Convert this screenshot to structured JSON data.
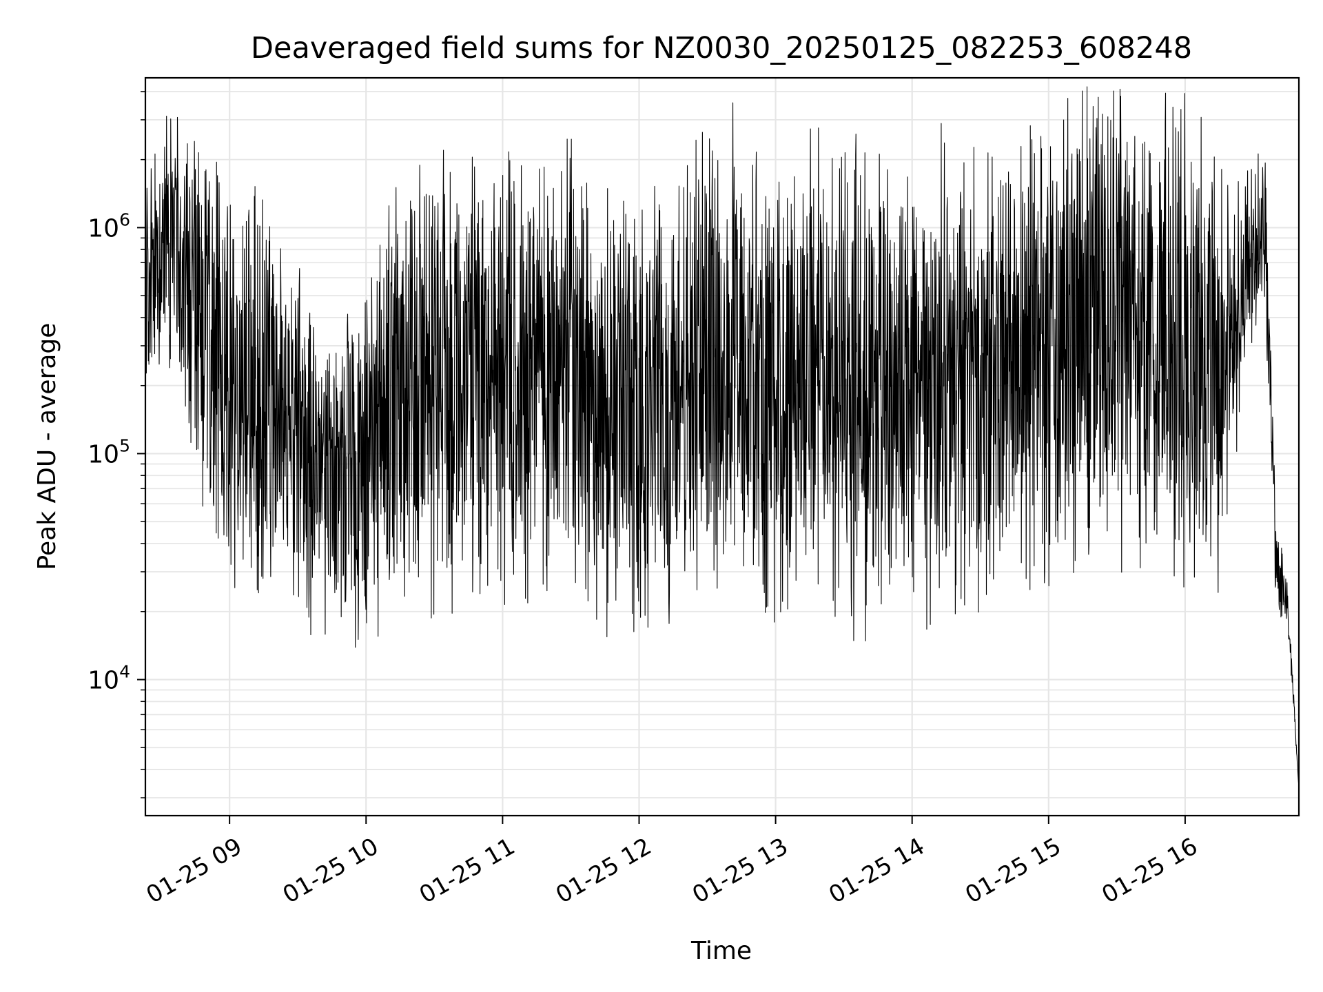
{
  "chart_data": {
    "type": "line",
    "title": "Deaveraged field sums for NZ0030_20250125_082253_608248",
    "xlabel": "Time",
    "ylabel": "Peak ADU - average",
    "yscale": "log",
    "grid": true,
    "legend": "none",
    "xlim": [
      "2025-01-25T08:23:00",
      "2025-01-25T16:50:00"
    ],
    "ylim": [
      2500,
      4600000
    ],
    "xticks": [
      {
        "value": "2025-01-25T09:00:00",
        "label": "01-25 09"
      },
      {
        "value": "2025-01-25T10:00:00",
        "label": "01-25 10"
      },
      {
        "value": "2025-01-25T11:00:00",
        "label": "01-25 11"
      },
      {
        "value": "2025-01-25T12:00:00",
        "label": "01-25 12"
      },
      {
        "value": "2025-01-25T13:00:00",
        "label": "01-25 13"
      },
      {
        "value": "2025-01-25T14:00:00",
        "label": "01-25 14"
      },
      {
        "value": "2025-01-25T15:00:00",
        "label": "01-25 15"
      },
      {
        "value": "2025-01-25T16:00:00",
        "label": "01-25 16"
      }
    ],
    "yticks": [
      {
        "value": 10000,
        "base": "10",
        "exp": "4"
      },
      {
        "value": 100000,
        "base": "10",
        "exp": "5"
      },
      {
        "value": 1000000,
        "base": "10",
        "exp": "6"
      }
    ],
    "line_color": "#000000",
    "grid_color": "#e6e6e6",
    "series": [
      {
        "x": [
          "2025-01-25T08:23:00",
          "2025-01-25T08:30:00",
          "2025-01-25T08:40:00",
          "2025-01-25T08:50:00",
          "2025-01-25T09:00:00",
          "2025-01-25T09:10:00",
          "2025-01-25T09:20:00",
          "2025-01-25T09:30:00",
          "2025-01-25T09:40:00",
          "2025-01-25T09:50:00",
          "2025-01-25T10:00:00",
          "2025-01-25T10:15:00",
          "2025-01-25T10:30:00",
          "2025-01-25T10:45:00",
          "2025-01-25T11:00:00",
          "2025-01-25T11:15:00",
          "2025-01-25T11:30:00",
          "2025-01-25T11:45:00",
          "2025-01-25T12:00:00",
          "2025-01-25T12:15:00",
          "2025-01-25T12:30:00",
          "2025-01-25T12:45:00",
          "2025-01-25T13:00:00",
          "2025-01-25T13:15:00",
          "2025-01-25T13:30:00",
          "2025-01-25T13:45:00",
          "2025-01-25T14:00:00",
          "2025-01-25T14:15:00",
          "2025-01-25T14:30:00",
          "2025-01-25T14:45:00",
          "2025-01-25T15:00:00",
          "2025-01-25T15:15:00",
          "2025-01-25T15:30:00",
          "2025-01-25T15:45:00",
          "2025-01-25T16:00:00",
          "2025-01-25T16:15:00",
          "2025-01-25T16:25:00",
          "2025-01-25T16:35:00",
          "2025-01-25T16:40:00",
          "2025-01-25T16:45:00",
          "2025-01-25T16:50:00"
        ],
        "y": [
          520000,
          900000,
          600000,
          380000,
          230000,
          220000,
          150000,
          110000,
          80000,
          75000,
          110000,
          180000,
          230000,
          210000,
          200000,
          230000,
          260000,
          180000,
          140000,
          200000,
          330000,
          220000,
          190000,
          260000,
          200000,
          180000,
          200000,
          210000,
          190000,
          230000,
          280000,
          420000,
          380000,
          330000,
          280000,
          250000,
          500000,
          1100000,
          30000,
          22000,
          3300
        ],
        "spread": [
          1.0,
          1.1,
          1.2,
          1.7,
          1.8,
          1.7,
          1.5,
          1.3,
          1.3,
          1.3,
          1.5,
          1.8,
          1.8,
          1.8,
          1.8,
          1.8,
          1.9,
          1.9,
          1.8,
          1.9,
          1.9,
          1.9,
          1.9,
          1.9,
          1.9,
          1.9,
          1.9,
          1.9,
          1.9,
          1.9,
          1.9,
          1.9,
          2.0,
          1.9,
          1.9,
          1.8,
          0.9,
          0.7,
          0.4,
          0.2,
          0.0
        ]
      }
    ]
  }
}
